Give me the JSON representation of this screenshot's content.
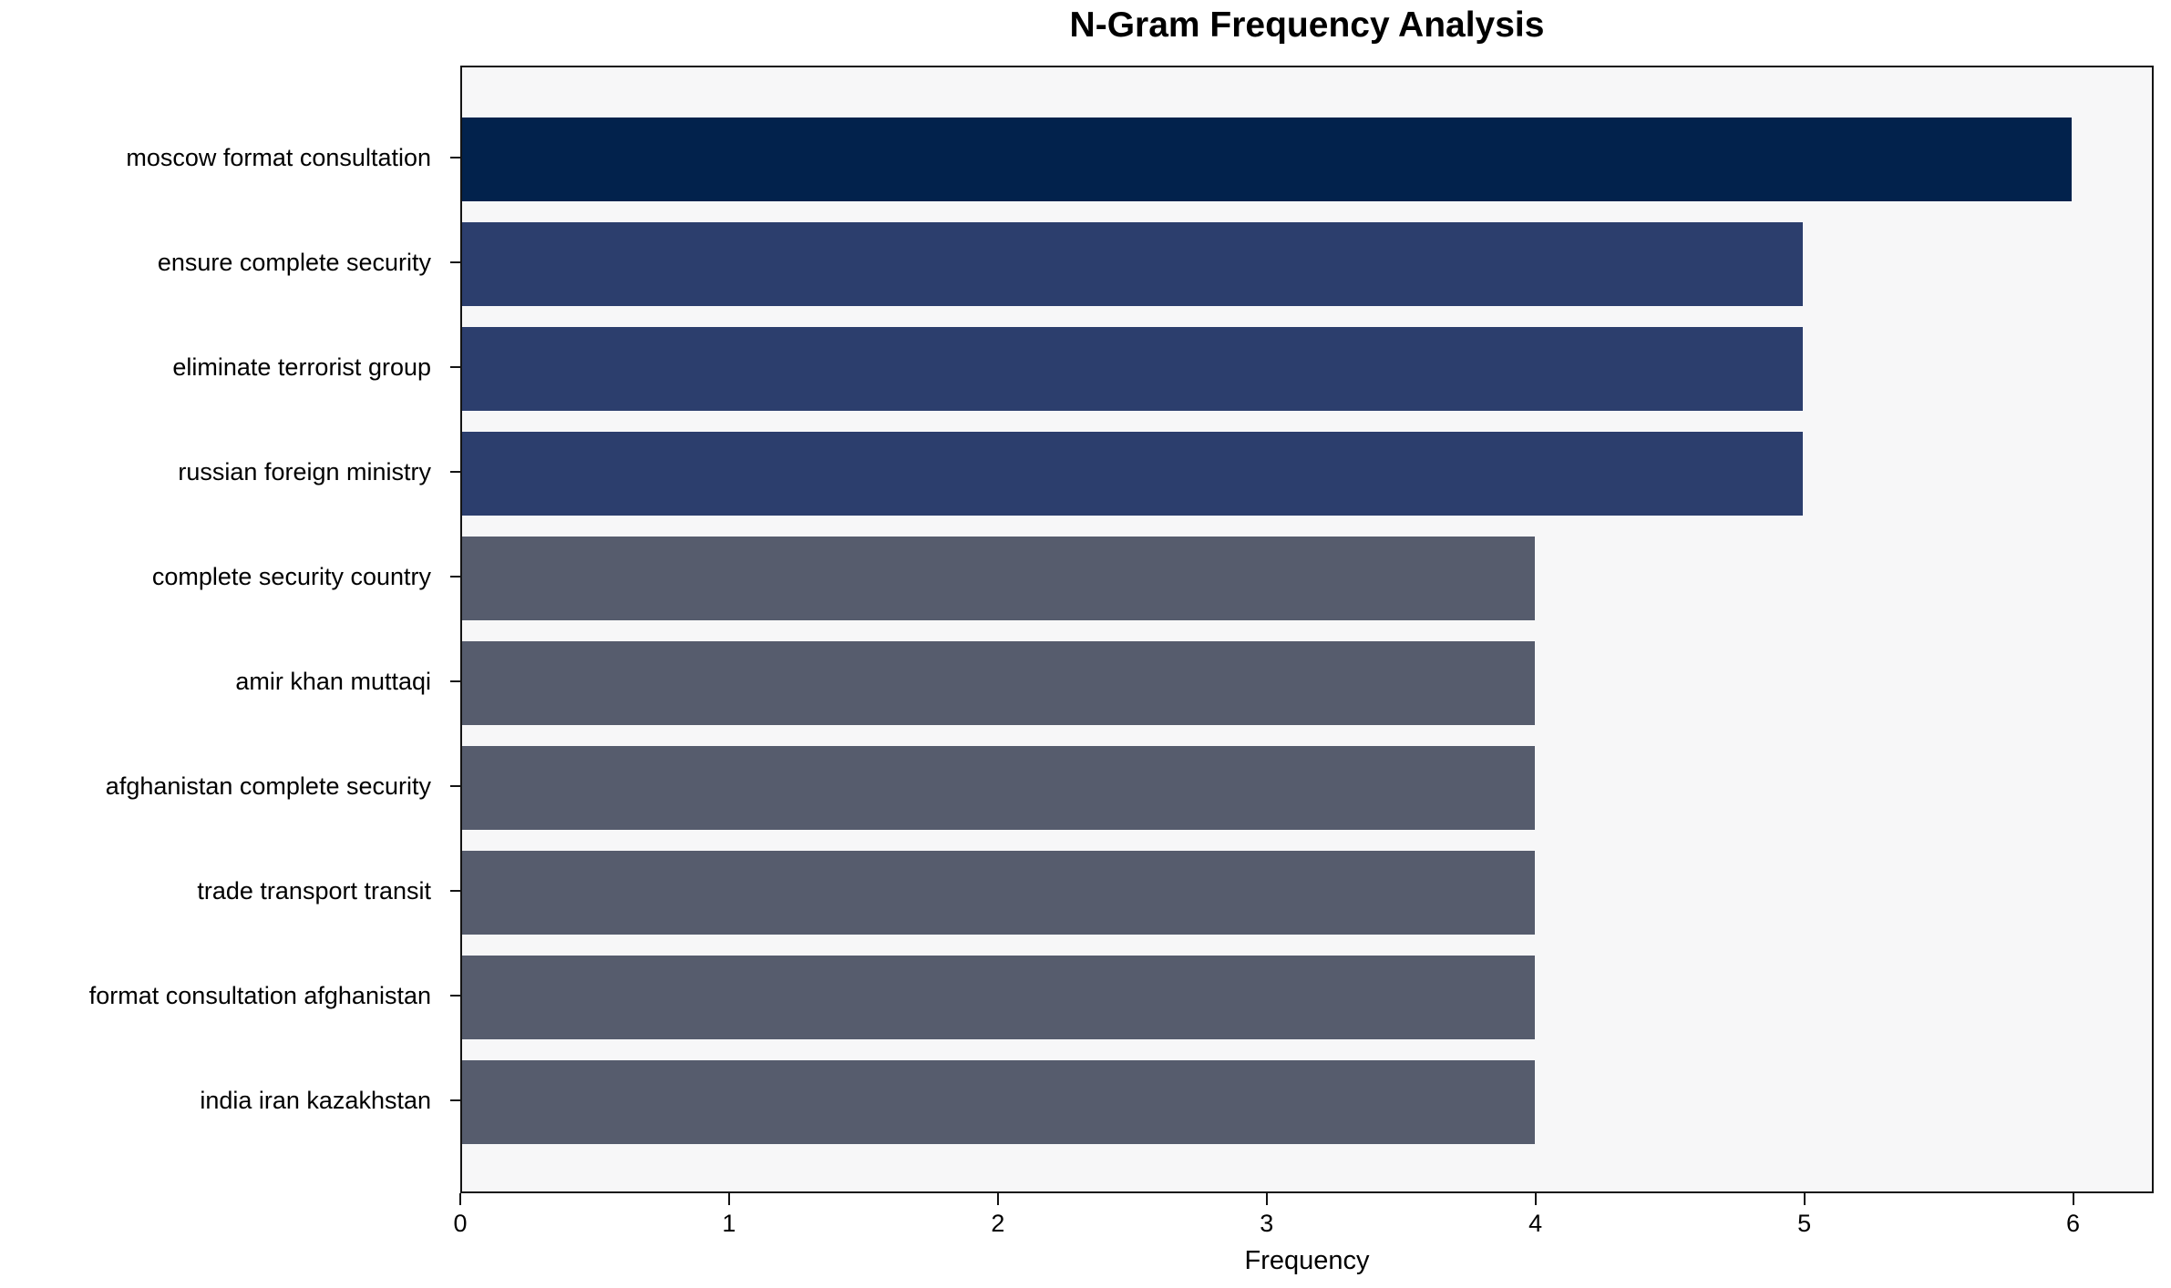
{
  "title": "N-Gram Frequency Analysis",
  "chart_data": {
    "type": "bar",
    "orientation": "horizontal",
    "title": "N-Gram Frequency Analysis",
    "xlabel": "Frequency",
    "ylabel": "",
    "categories": [
      "moscow format consultation",
      "ensure complete security",
      "eliminate terrorist group",
      "russian foreign ministry",
      "complete security country",
      "amir khan muttaqi",
      "afghanistan complete security",
      "trade transport transit",
      "format consultation afghanistan",
      "india iran kazakhstan"
    ],
    "values": [
      6,
      5,
      5,
      5,
      4,
      4,
      4,
      4,
      4,
      4
    ],
    "bar_colors": [
      "#02224c",
      "#2c3e6d",
      "#2c3e6d",
      "#2c3e6d",
      "#565c6d",
      "#565c6d",
      "#565c6d",
      "#565c6d",
      "#565c6d",
      "#565c6d"
    ],
    "x_ticks": [
      0,
      1,
      2,
      3,
      4,
      5,
      6
    ],
    "xlim": [
      0,
      6.3
    ],
    "grid": false,
    "legend": null,
    "plot_background": "#f7f7f8",
    "figure_background": "#ffffff",
    "spine_color": "#141414"
  }
}
